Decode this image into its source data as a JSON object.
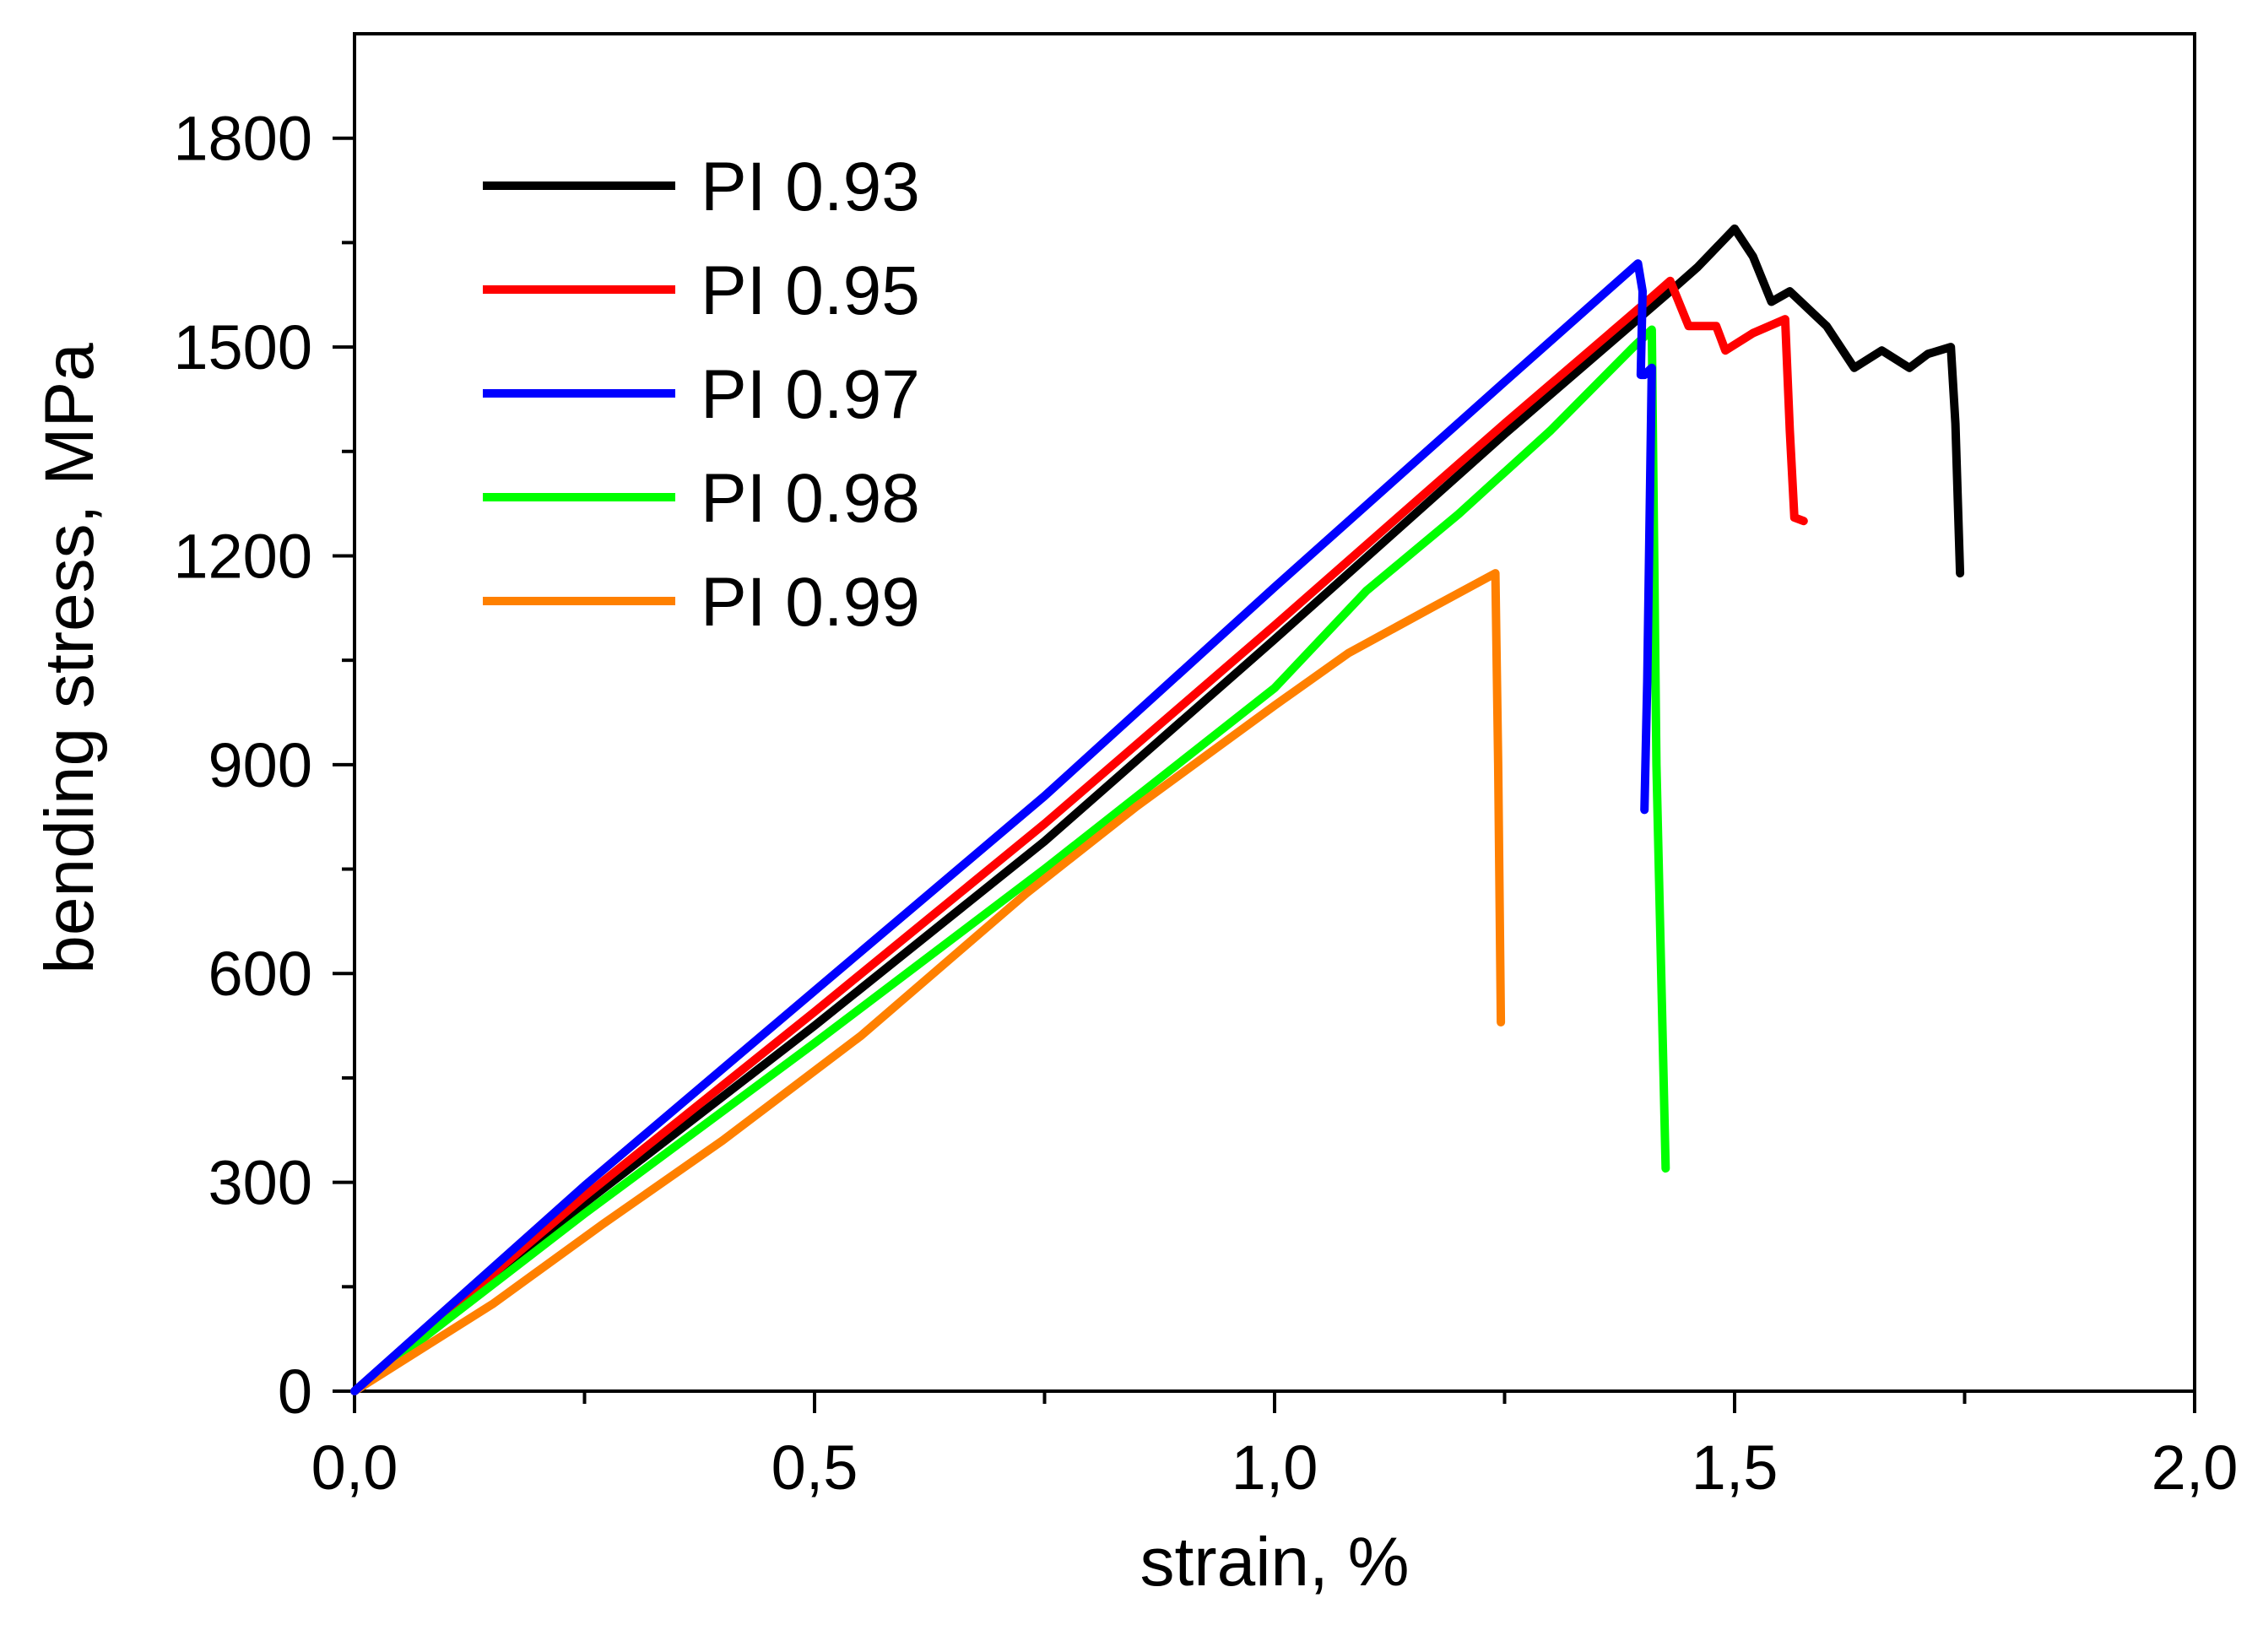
{
  "chart_data": {
    "type": "line",
    "title": "",
    "xlabel": "strain, %",
    "ylabel": "bending stress, MPa",
    "xlim": [
      0,
      2.0
    ],
    "ylim": [
      0,
      1950
    ],
    "xticks": [
      0,
      0.5,
      1.0,
      1.5,
      2.0
    ],
    "xtick_labels": [
      "0,0",
      "0,5",
      "1,0",
      "1,5",
      "2,0"
    ],
    "yticks": [
      0,
      300,
      600,
      900,
      1200,
      1500,
      1800
    ],
    "ytick_labels": [
      "0",
      "300",
      "600",
      "900",
      "1200",
      "1500",
      "1800"
    ],
    "grid": false,
    "legend_position": "top-left",
    "series": [
      {
        "name": "PI 0.93",
        "color": "#000000",
        "x": [
          0,
          0.25,
          0.5,
          0.75,
          1.0,
          1.25,
          1.43,
          1.46,
          1.5,
          1.52,
          1.54,
          1.56,
          1.6,
          1.63,
          1.66,
          1.69,
          1.71,
          1.735,
          1.74,
          1.745
        ],
        "y": [
          0,
          270,
          525,
          790,
          1080,
          1375,
          1580,
          1615,
          1670,
          1630,
          1565,
          1580,
          1530,
          1470,
          1495,
          1470,
          1490,
          1500,
          1390,
          1175
        ]
      },
      {
        "name": "PI 0.95",
        "color": "#ff0000",
        "x": [
          0,
          0.25,
          0.5,
          0.75,
          1.0,
          1.25,
          1.4,
          1.43,
          1.45,
          1.48,
          1.49,
          1.52,
          1.555,
          1.56,
          1.565,
          1.575
        ],
        "y": [
          0,
          280,
          545,
          815,
          1100,
          1390,
          1560,
          1595,
          1530,
          1530,
          1495,
          1520,
          1540,
          1380,
          1255,
          1250
        ]
      },
      {
        "name": "PI 0.97",
        "color": "#0000ff",
        "x": [
          0,
          0.25,
          0.5,
          0.75,
          1.0,
          1.25,
          1.395,
          1.4,
          1.398,
          1.402,
          1.41,
          1.405,
          1.402
        ],
        "y": [
          0,
          295,
          575,
          855,
          1155,
          1450,
          1620,
          1580,
          1460,
          1460,
          1470,
          1020,
          835
        ]
      },
      {
        "name": "PI 0.98",
        "color": "#00ff00",
        "x": [
          0,
          0.25,
          0.5,
          0.75,
          1.0,
          1.1,
          1.2,
          1.3,
          1.39,
          1.41,
          1.415,
          1.425
        ],
        "y": [
          0,
          255,
          500,
          750,
          1010,
          1150,
          1260,
          1380,
          1500,
          1525,
          900,
          320
        ]
      },
      {
        "name": "PI 0.99",
        "color": "#ff8000",
        "x": [
          0,
          0.15,
          0.27,
          0.4,
          0.55,
          0.73,
          0.85,
          1.0,
          1.08,
          1.17,
          1.24,
          1.243,
          1.246
        ],
        "y": [
          0,
          125,
          240,
          360,
          510,
          715,
          840,
          985,
          1060,
          1125,
          1175,
          900,
          530
        ]
      }
    ]
  }
}
